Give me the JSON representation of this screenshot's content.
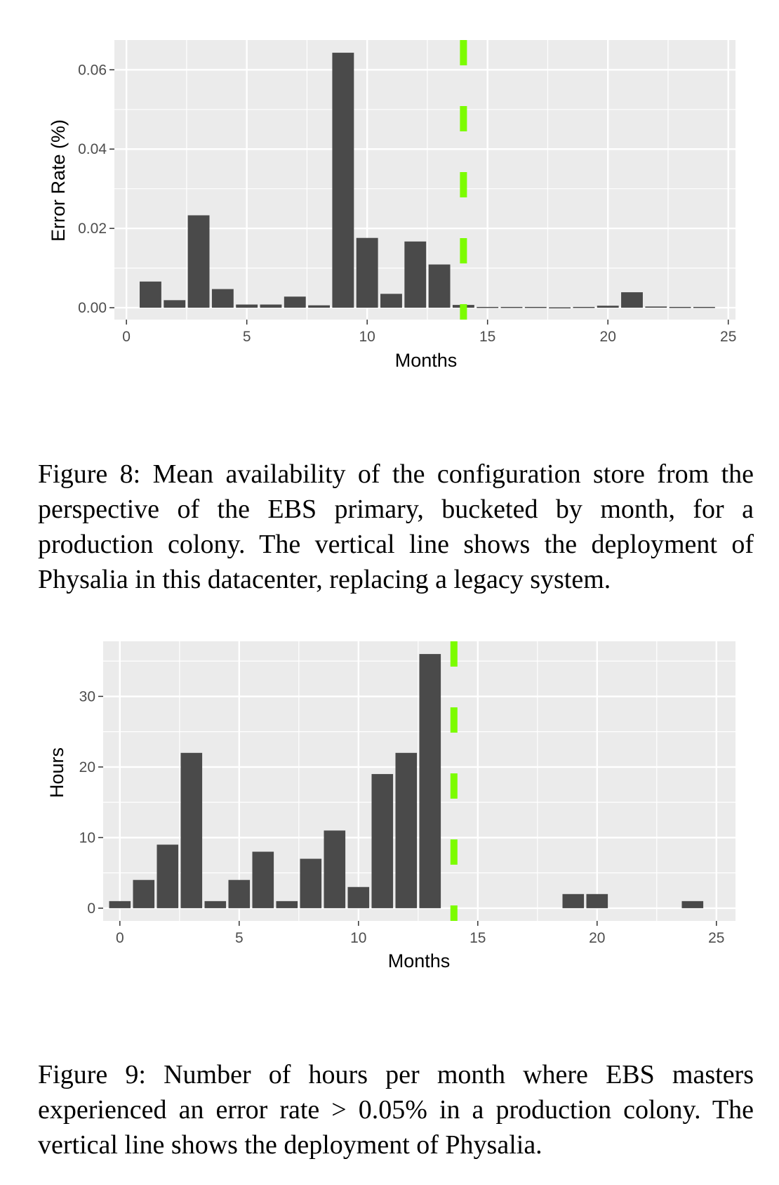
{
  "chart_data": [
    {
      "type": "bar",
      "xlabel": "Months",
      "ylabel": "Error Rate (%)",
      "xlim": [
        -0.5,
        25.3
      ],
      "ylim": [
        -0.003,
        0.0675
      ],
      "x_ticks": [
        0,
        5,
        10,
        15,
        20,
        25
      ],
      "x_tick_labels": [
        "0",
        "5",
        "10",
        "15",
        "20",
        "25"
      ],
      "y_ticks": [
        0.0,
        0.02,
        0.04,
        0.06
      ],
      "y_tick_labels": [
        "0.00",
        "0.02",
        "0.04",
        "0.06"
      ],
      "x": [
        1,
        2,
        3,
        4,
        5,
        6,
        7,
        8,
        9,
        10,
        11,
        12,
        13,
        14,
        15,
        16,
        17,
        18,
        19,
        20,
        21,
        22,
        23,
        24
      ],
      "values": [
        0.0066,
        0.0019,
        0.0233,
        0.0047,
        0.0008,
        0.0008,
        0.0028,
        0.0006,
        0.0643,
        0.0176,
        0.0035,
        0.0167,
        0.0109,
        0.0007,
        0.0002,
        0.0002,
        0.0002,
        0.0001,
        0.0002,
        0.0005,
        0.0039,
        0.0003,
        0.0002,
        0.0002
      ],
      "vline_x": 14,
      "vline_color": "#7CFC00",
      "bar_color": "#4a4a4a",
      "panel_color": "#ebebeb",
      "grid": true
    },
    {
      "type": "bar",
      "xlabel": "Months",
      "ylabel": "Hours",
      "xlim": [
        -0.7,
        25.8
      ],
      "ylim": [
        -1.8,
        37.8
      ],
      "x_ticks": [
        0,
        5,
        10,
        15,
        20,
        25
      ],
      "x_tick_labels": [
        "0",
        "5",
        "10",
        "15",
        "20",
        "25"
      ],
      "y_ticks": [
        0,
        10,
        20,
        30
      ],
      "y_tick_labels": [
        "0",
        "10",
        "20",
        "30"
      ],
      "x": [
        0,
        1,
        2,
        3,
        4,
        5,
        6,
        7,
        8,
        9,
        10,
        11,
        12,
        13,
        19,
        20,
        24
      ],
      "values": [
        1,
        4,
        9,
        22,
        1,
        4,
        8,
        1,
        7,
        11,
        3,
        19,
        22,
        36,
        2,
        2,
        1
      ],
      "vline_x": 14,
      "vline_color": "#7CFC00",
      "bar_color": "#4a4a4a",
      "panel_color": "#ebebeb",
      "grid": true
    }
  ],
  "captions": {
    "fig8": "Figure 8: Mean availability of the configuration store from the perspective of the EBS primary, bucketed by month, for a production colony. The vertical line shows the deployment of Physalia in this datacenter, replacing a legacy system.",
    "fig9": "Figure 9: Number of hours per month where EBS masters experienced an error rate > 0.05% in a production colony. The vertical line shows the deployment of Physalia."
  }
}
